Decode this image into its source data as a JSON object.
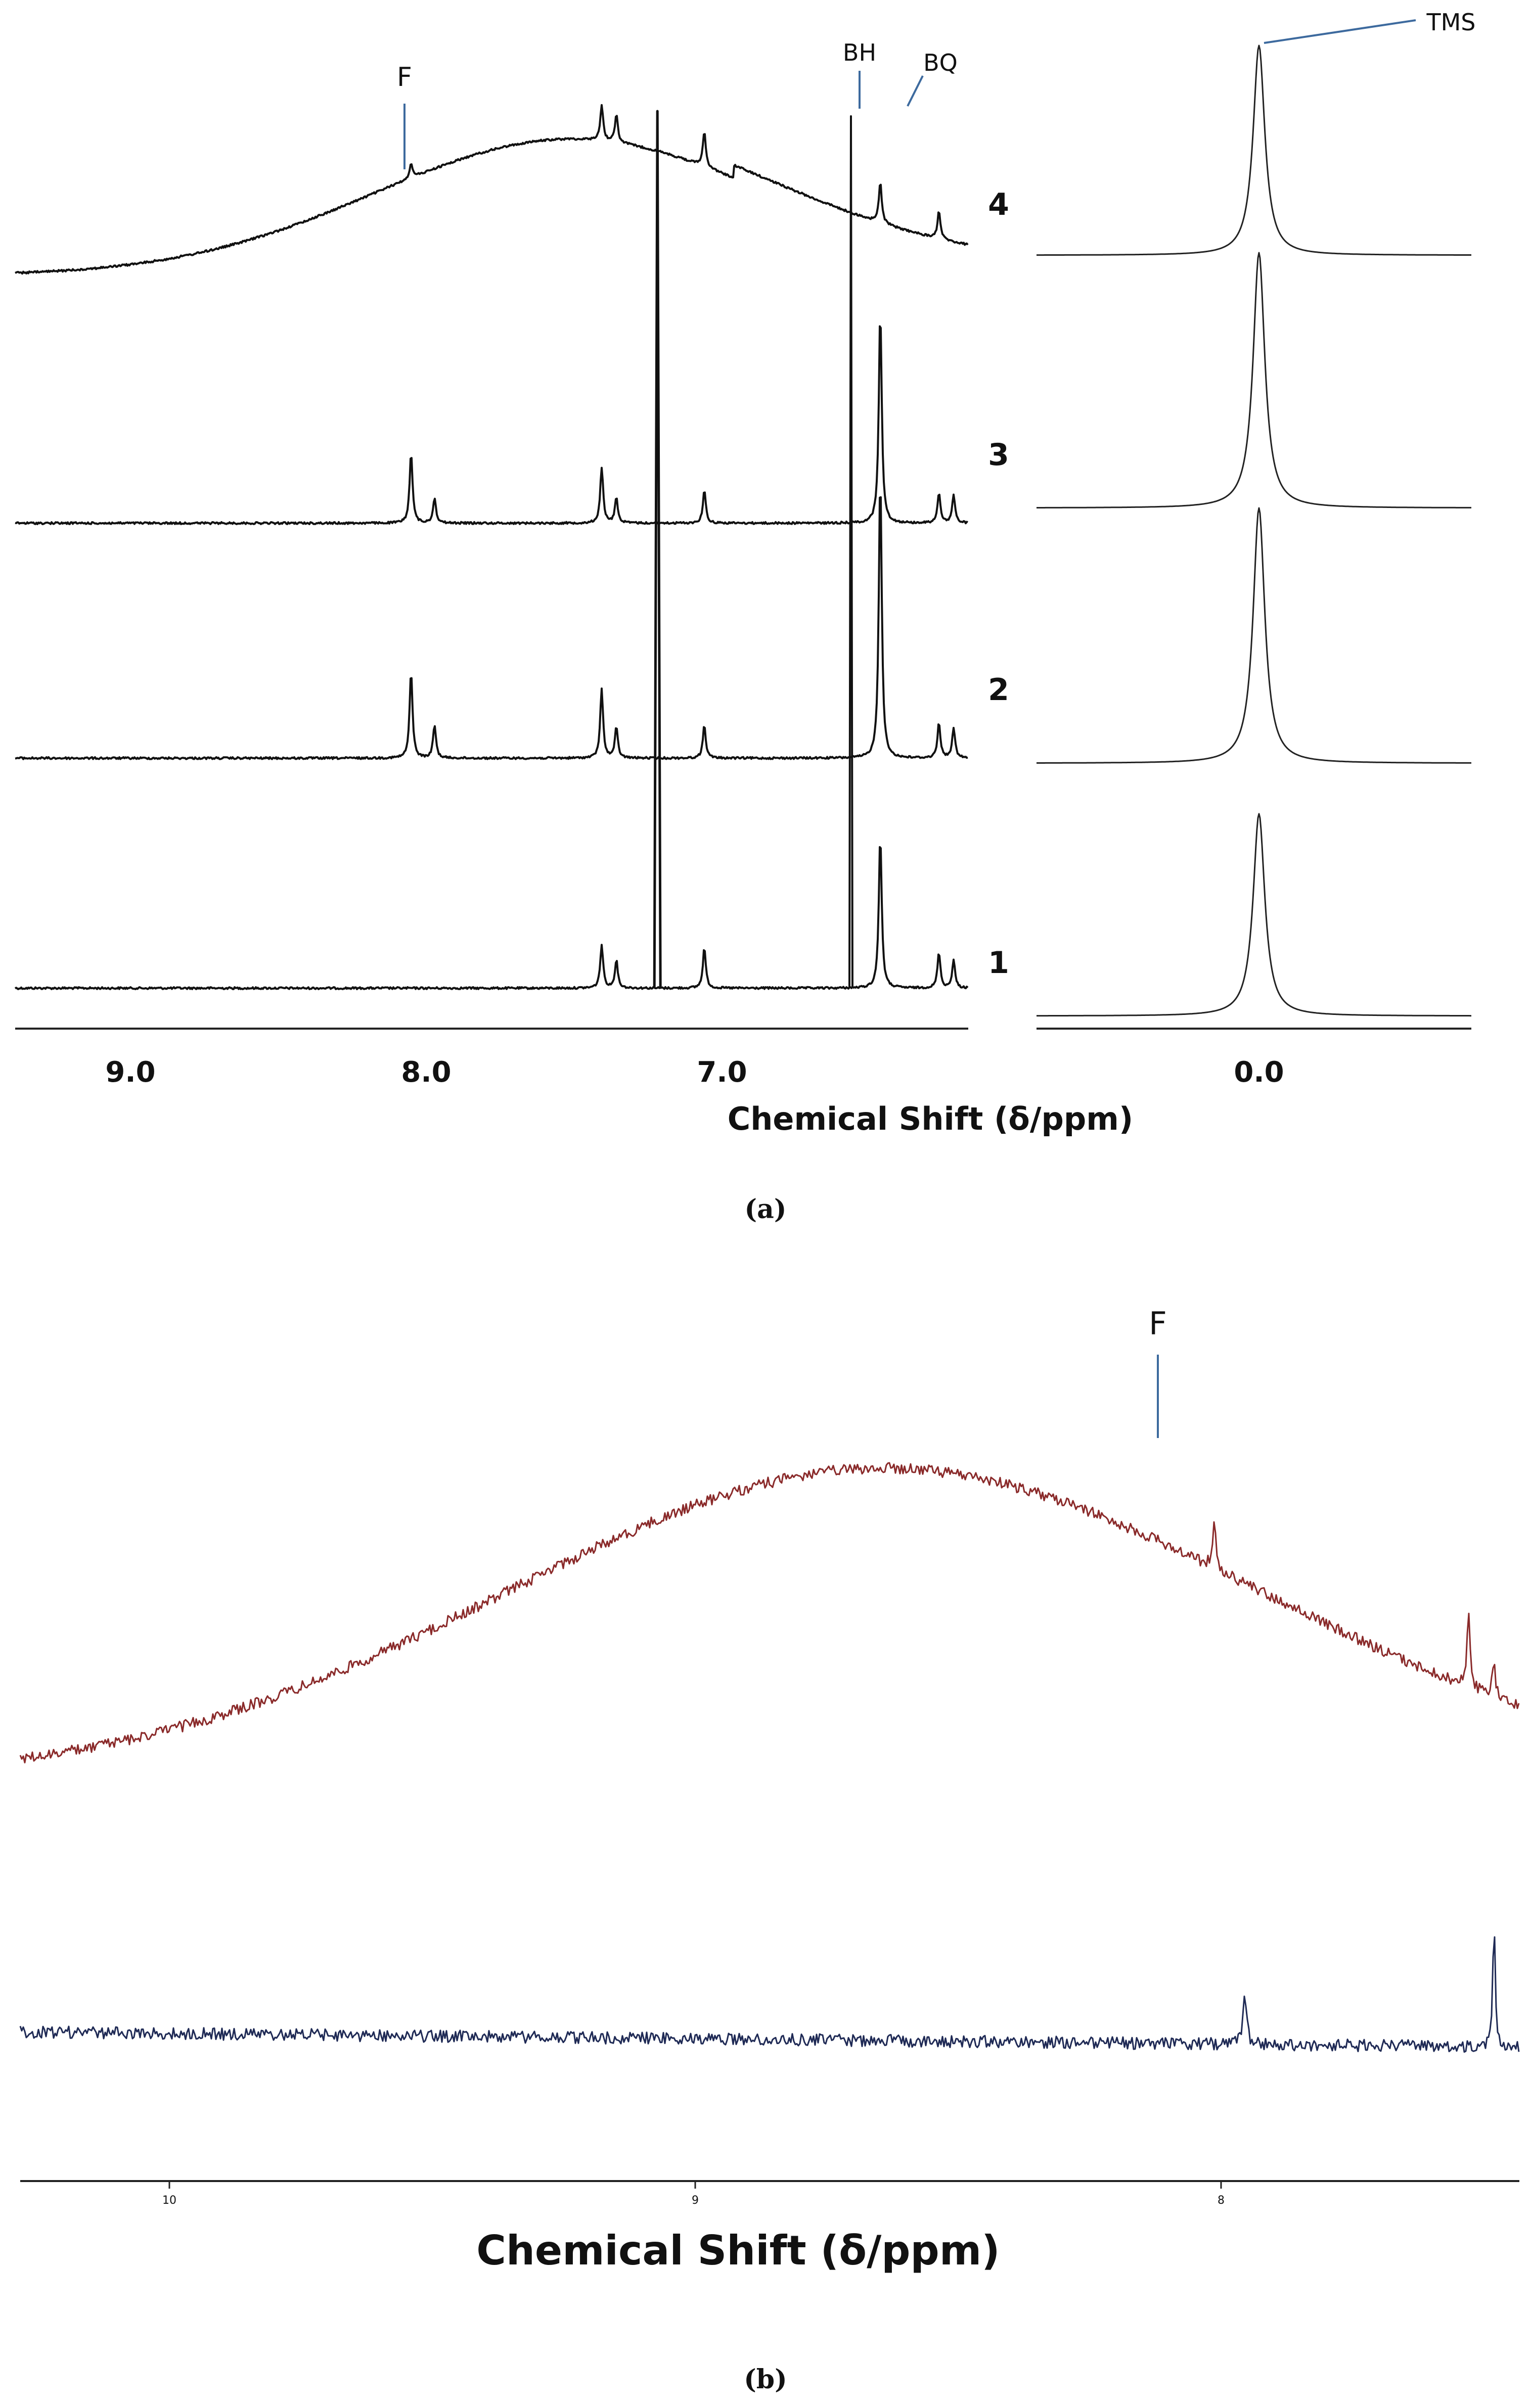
{
  "chart_data": [
    {
      "panel": "(a)",
      "type": "line",
      "xlabel": "Chemical Shift (δ/ppm)",
      "x_range": [
        9.45,
        6.2
      ],
      "x_range_tms": [
        0.45,
        -0.35
      ],
      "x_ticks": [
        "9.0",
        "8.0",
        "7.0"
      ],
      "x_ticks_tms": [
        "0.0"
      ],
      "series": [
        {
          "name": "1",
          "baseline": "flat",
          "color": "#111111"
        },
        {
          "name": "2",
          "baseline": "flat",
          "color": "#111111"
        },
        {
          "name": "3",
          "baseline": "flat",
          "color": "#111111"
        },
        {
          "name": "4",
          "baseline": "broad hump",
          "color": "#111111"
        }
      ],
      "annotations": [
        {
          "label": "F",
          "x": 8.1
        },
        {
          "label": "BH",
          "x": 6.6
        },
        {
          "label": "BQ",
          "x": 6.5
        },
        {
          "label": "TMS",
          "x": 0.0
        }
      ],
      "peaks_ppm": [
        8.1,
        8.02,
        7.45,
        7.4,
        7.26,
        7.1,
        6.6,
        6.5
      ],
      "label_color": "#3d6a9e"
    },
    {
      "panel": "(b)",
      "type": "line",
      "xlabel": "Chemical Shift (δ/ppm)",
      "x_range": [
        10.45,
        7.5
      ],
      "x_ticks": [
        "10",
        "9",
        "8"
      ],
      "series": [
        {
          "name": "",
          "baseline": "broad hump",
          "color": "#8a2a2a"
        },
        {
          "name": "",
          "baseline": "flat",
          "color": "#1f2a55"
        }
      ],
      "annotations": [
        {
          "label": "F",
          "x": 8.1
        }
      ],
      "peaks_ppm": [
        8.1,
        8.04,
        7.6,
        7.55
      ],
      "label_color": "#3d6a9e"
    }
  ]
}
